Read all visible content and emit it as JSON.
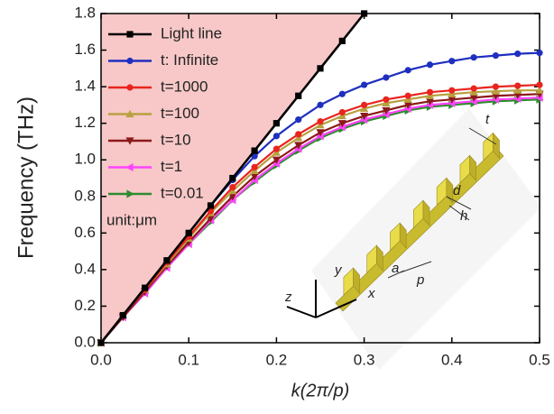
{
  "chart_data": {
    "type": "line",
    "x_label": "k(2π/p)",
    "y_label": "Frequency (THz)",
    "xlim": [
      0,
      0.5
    ],
    "ylim": [
      0,
      1.8
    ],
    "xticks": [
      {
        "value": 0,
        "label": "0.0"
      },
      {
        "value": 0.1,
        "label": "0.1"
      },
      {
        "value": 0.2,
        "label": "0.2"
      },
      {
        "value": 0.3,
        "label": "0.3"
      },
      {
        "value": 0.4,
        "label": "0.4"
      },
      {
        "value": 0.5,
        "label": "0.5"
      }
    ],
    "yticks": [
      {
        "value": 0,
        "label": "0.0"
      },
      {
        "value": 0.2,
        "label": "0.2"
      },
      {
        "value": 0.4,
        "label": "0.4"
      },
      {
        "value": 0.6,
        "label": "0.6"
      },
      {
        "value": 0.8,
        "label": "0.8"
      },
      {
        "value": 1,
        "label": "1.0"
      },
      {
        "value": 1.2,
        "label": "1.2"
      },
      {
        "value": 1.4,
        "label": "1.4"
      },
      {
        "value": 1.6,
        "label": "1.6"
      },
      {
        "value": 1.8,
        "label": "1.8"
      }
    ],
    "light_cone_color": "#f8c8c8",
    "legend": "upper left",
    "annotation": "unit:μm",
    "series": [
      {
        "name": "Light line",
        "color": "#000000",
        "marker": "square",
        "x": [
          0,
          0.025,
          0.05,
          0.075,
          0.1,
          0.125,
          0.15,
          0.175,
          0.2,
          0.225,
          0.25,
          0.275,
          0.3
        ],
        "values": [
          0,
          0.15,
          0.3,
          0.45,
          0.6,
          0.75,
          0.9,
          1.05,
          1.2,
          1.35,
          1.5,
          1.65,
          1.8
        ]
      },
      {
        "name": "t:  Infinite",
        "color": "#1f2fbf",
        "marker": "circle",
        "x": [
          0,
          0.025,
          0.05,
          0.075,
          0.1,
          0.125,
          0.15,
          0.175,
          0.2,
          0.225,
          0.25,
          0.275,
          0.3,
          0.325,
          0.35,
          0.375,
          0.4,
          0.425,
          0.45,
          0.475,
          0.5
        ],
        "values": [
          0,
          0.15,
          0.3,
          0.45,
          0.6,
          0.75,
          0.89,
          1.02,
          1.13,
          1.22,
          1.3,
          1.36,
          1.41,
          1.45,
          1.49,
          1.52,
          1.54,
          1.56,
          1.57,
          1.58,
          1.585
        ]
      },
      {
        "name": "t=1000",
        "color": "#e8251e",
        "marker": "circle",
        "x": [
          0,
          0.025,
          0.05,
          0.075,
          0.1,
          0.125,
          0.15,
          0.175,
          0.2,
          0.225,
          0.25,
          0.275,
          0.3,
          0.325,
          0.35,
          0.375,
          0.4,
          0.425,
          0.45,
          0.475,
          0.5
        ],
        "values": [
          0,
          0.15,
          0.29,
          0.44,
          0.58,
          0.72,
          0.85,
          0.96,
          1.06,
          1.14,
          1.21,
          1.26,
          1.3,
          1.33,
          1.35,
          1.37,
          1.38,
          1.39,
          1.4,
          1.405,
          1.41
        ]
      },
      {
        "name": "t=100",
        "color": "#b8a040",
        "marker": "triangle-up",
        "x": [
          0,
          0.025,
          0.05,
          0.075,
          0.1,
          0.125,
          0.15,
          0.175,
          0.2,
          0.225,
          0.25,
          0.275,
          0.3,
          0.325,
          0.35,
          0.375,
          0.4,
          0.425,
          0.45,
          0.475,
          0.5
        ],
        "values": [
          0,
          0.15,
          0.29,
          0.43,
          0.57,
          0.71,
          0.83,
          0.94,
          1.04,
          1.12,
          1.19,
          1.24,
          1.28,
          1.31,
          1.33,
          1.35,
          1.36,
          1.37,
          1.375,
          1.38,
          1.38
        ]
      },
      {
        "name": "t=10",
        "color": "#8b1a1a",
        "marker": "triangle-down",
        "x": [
          0,
          0.025,
          0.05,
          0.075,
          0.1,
          0.125,
          0.15,
          0.175,
          0.2,
          0.225,
          0.25,
          0.275,
          0.3,
          0.325,
          0.35,
          0.375,
          0.4,
          0.425,
          0.45,
          0.475,
          0.5
        ],
        "values": [
          0,
          0.14,
          0.28,
          0.42,
          0.55,
          0.68,
          0.8,
          0.91,
          1.0,
          1.08,
          1.15,
          1.2,
          1.24,
          1.27,
          1.3,
          1.32,
          1.33,
          1.34,
          1.35,
          1.355,
          1.36
        ]
      },
      {
        "name": "t=1",
        "color": "#ff44ff",
        "marker": "triangle-left",
        "x": [
          0,
          0.025,
          0.05,
          0.075,
          0.1,
          0.125,
          0.15,
          0.175,
          0.2,
          0.225,
          0.25,
          0.275,
          0.3,
          0.325,
          0.35,
          0.375,
          0.4,
          0.425,
          0.45,
          0.475,
          0.5
        ],
        "values": [
          0,
          0.14,
          0.27,
          0.41,
          0.54,
          0.67,
          0.78,
          0.89,
          0.98,
          1.06,
          1.13,
          1.18,
          1.22,
          1.25,
          1.28,
          1.3,
          1.31,
          1.32,
          1.33,
          1.335,
          1.34
        ]
      },
      {
        "name": "t=0.01",
        "color": "#2e8b2e",
        "marker": "triangle-right",
        "x": [
          0,
          0.025,
          0.05,
          0.075,
          0.1,
          0.125,
          0.15,
          0.175,
          0.2,
          0.225,
          0.25,
          0.275,
          0.3,
          0.325,
          0.35,
          0.375,
          0.4,
          0.425,
          0.45,
          0.475,
          0.5
        ],
        "values": [
          0,
          0.14,
          0.27,
          0.41,
          0.54,
          0.66,
          0.78,
          0.88,
          0.97,
          1.05,
          1.12,
          1.17,
          1.21,
          1.24,
          1.27,
          1.29,
          1.3,
          1.31,
          1.32,
          1.325,
          1.33
        ]
      }
    ],
    "inset_labels": {
      "t": "t",
      "d": "d",
      "h": "h",
      "a": "a",
      "p": "p",
      "x": "x",
      "y": "y",
      "z": "z"
    }
  }
}
